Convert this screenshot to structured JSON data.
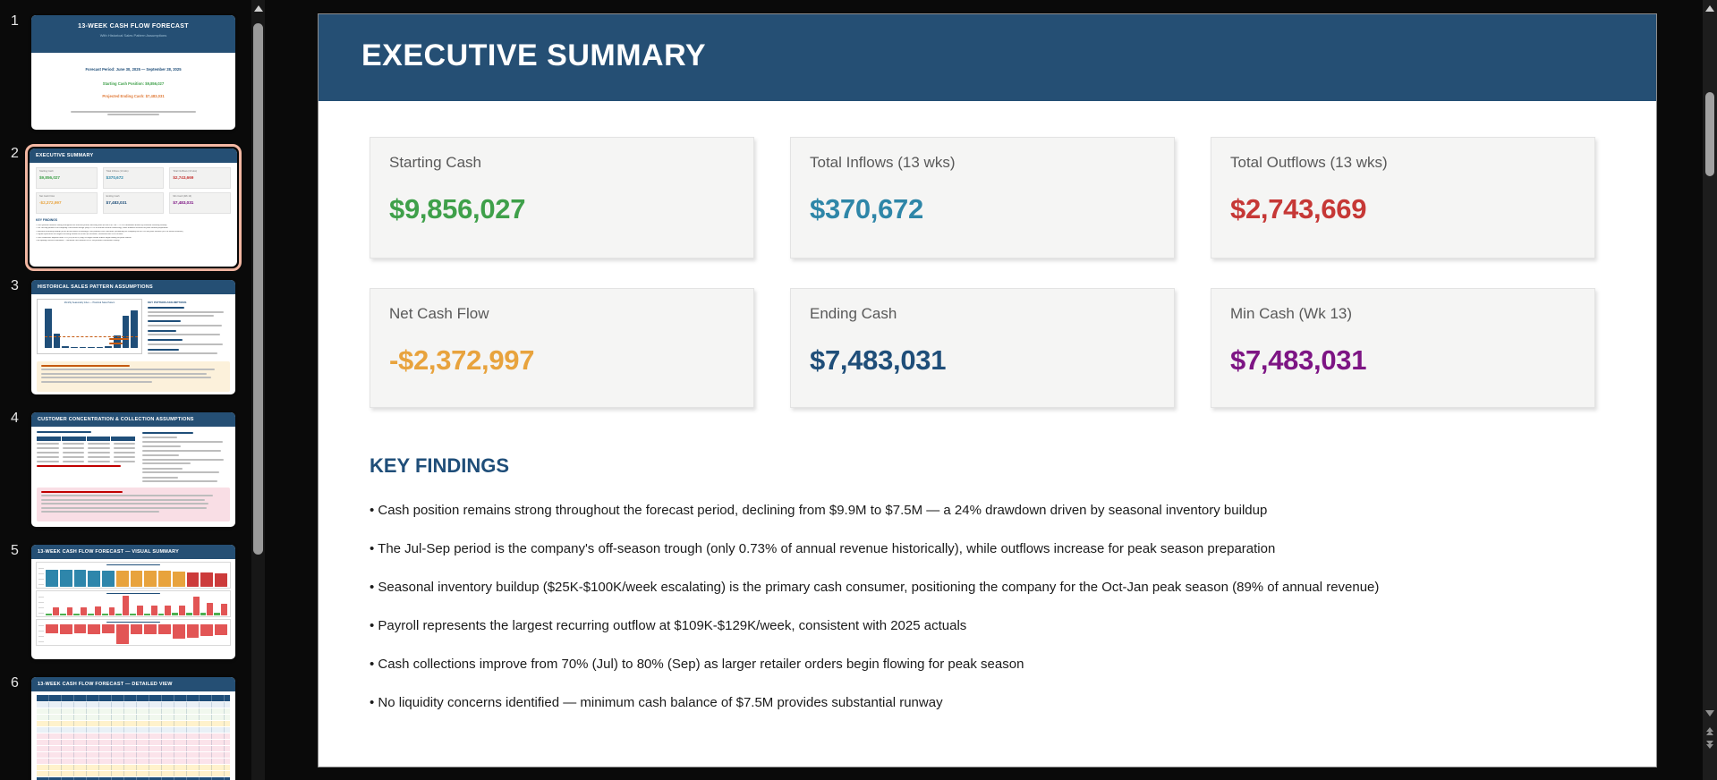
{
  "colors": {
    "app_background": "#0a0a0a",
    "header_blue": "#254F74",
    "accent_salmon": "#F4B8A3",
    "green": "#3FA04A",
    "teal": "#2E86A8",
    "red": "#C63836",
    "orange": "#E8A33D",
    "navy": "#1F4E79",
    "purple": "#7D1584"
  },
  "slide": {
    "title": "EXECUTIVE SUMMARY",
    "cards": [
      {
        "label": "Starting Cash",
        "value": "$9,856,027",
        "color": "#3FA04A"
      },
      {
        "label": "Total Inflows (13 wks)",
        "value": "$370,672",
        "color": "#2E86A8"
      },
      {
        "label": "Total Outflows (13 wks)",
        "value": "$2,743,669",
        "color": "#C63836"
      },
      {
        "label": "Net Cash Flow",
        "value": "-$2,372,997",
        "color": "#E8A33D"
      },
      {
        "label": "Ending Cash",
        "value": "$7,483,031",
        "color": "#1F4E79"
      },
      {
        "label": "Min Cash (Wk 13)",
        "value": "$7,483,031",
        "color": "#7D1584"
      }
    ],
    "key_findings": {
      "heading": "KEY FINDINGS",
      "bullets": [
        "Cash position remains strong throughout the forecast period, declining from $9.9M to $7.5M — a 24% drawdown driven by seasonal inventory buildup",
        "The Jul-Sep period is the company's off-season trough (only 0.73% of annual revenue historically), while outflows increase for peak season preparation",
        "Seasonal inventory buildup ($25K-$100K/week escalating) is the primary cash consumer, positioning the company for the Oct-Jan peak season (89% of annual revenue)",
        "Payroll represents the largest recurring outflow at $109K-$129K/week, consistent with 2025 actuals",
        "Cash collections improve from 70% (Jul) to 80% (Sep) as larger retailer orders begin flowing for peak season",
        "No liquidity concerns identified — minimum cash balance of $7.5M provides substantial runway"
      ]
    }
  },
  "sidebar": {
    "thumbnails": [
      {
        "number": "1",
        "title": "13-WEEK CASH FLOW FORECAST",
        "subtitle": "With Historical Sales Pattern Assumptions",
        "lines": [
          {
            "text": "Forecast Period: June 30, 2025 — September 28, 2025",
            "color": "#1F4E79"
          },
          {
            "text": "Starting Cash Position: $9,856,027",
            "color": "#3FA04A"
          },
          {
            "text": "Projected Ending Cash: $7,483,031",
            "color": "#E07B39"
          }
        ]
      },
      {
        "number": "2",
        "title": "EXECUTIVE SUMMARY",
        "selected": true,
        "mini_heading": "KEY FINDINGS"
      },
      {
        "number": "3",
        "title": "HISTORICAL SALES PATTERN ASSUMPTIONS",
        "chart_title": "Monthly Seasonality Index — Historical Sales Pattern",
        "right_heading": "KEY PATTERN ASSUMPTIONS"
      },
      {
        "number": "4",
        "title": "CUSTOMER CONCENTRATION & COLLECTION ASSUMPTIONS"
      },
      {
        "number": "5",
        "title": "13-WEEK CASH FLOW FORECAST — VISUAL SUMMARY"
      },
      {
        "number": "6",
        "title": "13-WEEK CASH FLOW FORECAST — DETAILED VIEW"
      }
    ]
  },
  "mini_charts": {
    "seasonality": [
      [
        96,
        "#1F4E79"
      ],
      [
        34,
        "#1F4E79"
      ],
      [
        4,
        "#1F4E79"
      ],
      [
        3,
        "#1F4E79"
      ],
      [
        3,
        "#1F4E79"
      ],
      [
        3,
        "#1F4E79"
      ],
      [
        3,
        "#1F4E79"
      ],
      [
        4,
        "#1F4E79"
      ],
      [
        30,
        "#1F4E79"
      ],
      [
        78,
        "#1F4E79"
      ],
      [
        92,
        "#1F4E79"
      ]
    ],
    "weekly_balance": [
      [
        88,
        "#2E86AB"
      ],
      [
        86,
        "#2E86AB"
      ],
      [
        85,
        "#2E86AB"
      ],
      [
        84,
        "#2E86AB"
      ],
      [
        83,
        "#2E86AB"
      ],
      [
        84,
        "#E8A33D"
      ],
      [
        82,
        "#E8A33D"
      ],
      [
        81,
        "#E8A33D"
      ],
      [
        80,
        "#E8A33D"
      ],
      [
        79,
        "#E8A33D"
      ],
      [
        74,
        "#CC3B3B"
      ],
      [
        72,
        "#CC3B3B"
      ],
      [
        70,
        "#CC3B3B"
      ]
    ],
    "inflows_outflows": [
      [
        8,
        "#4CAF50"
      ],
      [
        40,
        "#E25555"
      ],
      [
        7,
        "#4CAF50"
      ],
      [
        42,
        "#E25555"
      ],
      [
        7,
        "#4CAF50"
      ],
      [
        40,
        "#E25555"
      ],
      [
        8,
        "#4CAF50"
      ],
      [
        45,
        "#E25555"
      ],
      [
        8,
        "#4CAF50"
      ],
      [
        42,
        "#E25555"
      ],
      [
        10,
        "#4CAF50"
      ],
      [
        100,
        "#E25555"
      ],
      [
        9,
        "#4CAF50"
      ],
      [
        52,
        "#E25555"
      ],
      [
        8,
        "#4CAF50"
      ],
      [
        50,
        "#E25555"
      ],
      [
        9,
        "#4CAF50"
      ],
      [
        48,
        "#E25555"
      ],
      [
        12,
        "#4CAF50"
      ],
      [
        52,
        "#E25555"
      ],
      [
        14,
        "#4CAF50"
      ],
      [
        96,
        "#E25555"
      ],
      [
        12,
        "#4CAF50"
      ],
      [
        62,
        "#E25555"
      ],
      [
        12,
        "#4CAF50"
      ],
      [
        60,
        "#E25555"
      ]
    ],
    "net_cash_flow": [
      [
        45,
        "#E25555"
      ],
      [
        48,
        "#E25555"
      ],
      [
        45,
        "#E25555"
      ],
      [
        50,
        "#E25555"
      ],
      [
        46,
        "#E25555"
      ],
      [
        98,
        "#E25555"
      ],
      [
        52,
        "#E25555"
      ],
      [
        50,
        "#E25555"
      ],
      [
        48,
        "#E25555"
      ],
      [
        72,
        "#E25555"
      ],
      [
        70,
        "#E25555"
      ],
      [
        58,
        "#E25555"
      ],
      [
        56,
        "#E25555"
      ]
    ]
  }
}
